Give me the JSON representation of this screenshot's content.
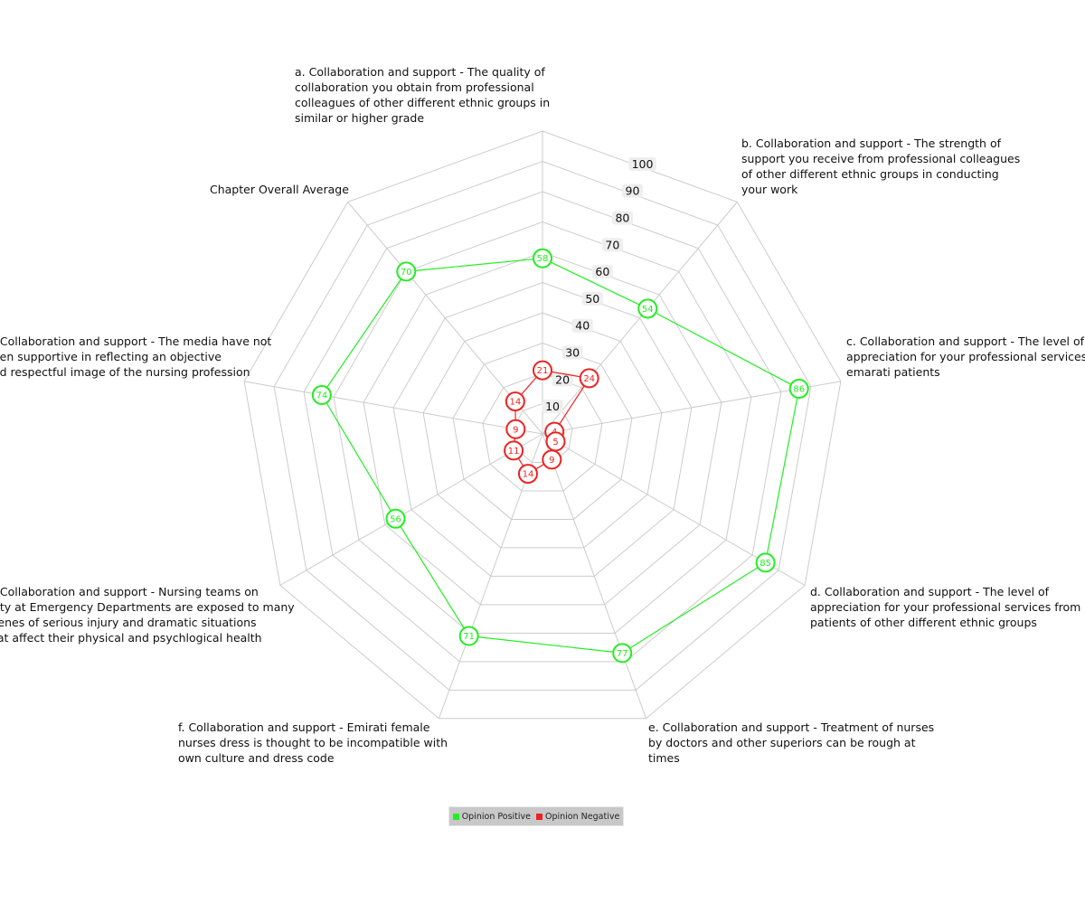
{
  "chart_data": {
    "type": "radar",
    "categories": [
      "a. Collaboration and support - The quality of collaboration you obtain from professional colleagues of other different ethnic groups in similar or higher grade",
      "b. Collaboration and support - The strength of support you receive from professional colleagues of other different ethnic groups in conducting your work",
      "c. Collaboration and support - The level of appreciation for your professional services from emarati patients",
      "d. Collaboration and support - The level of appreciation for your professional services from patients of other different ethnic groups",
      "e. Collaboration and support - Treatment of nurses by doctors and other superiors can be rough at times",
      "f. Collaboration and support - Emirati female nurses dress is thought to be incompatible with own culture and dress code",
      "g. Collaboration and support - Nursing teams on duty at Emergency Departments are exposed to many scenes of serious injury and dramatic situations that affect their physical and psychlogical health",
      "h. Collaboration and support - The media have not been supportive in reflecting an objective and respectful image of the nursing profession",
      "Chapter Overall Average"
    ],
    "label_lines": [
      [
        "a. Collaboration and support - The quality of",
        "collaboration you obtain from professional",
        "colleagues of other different ethnic groups in",
        "similar or higher grade"
      ],
      [
        "b. Collaboration and support - The strength of",
        "support you receive from professional colleagues",
        "of other different ethnic groups in conducting",
        "your work"
      ],
      [
        "c. Collaboration and support - The level of",
        "appreciation for your professional services from",
        "emarati patients"
      ],
      [
        "d. Collaboration and support - The level of",
        "appreciation for your professional services from",
        "patients of other different ethnic groups"
      ],
      [
        "e. Collaboration and support - Treatment of nurses",
        "by doctors and other superiors can be rough at",
        "times"
      ],
      [
        "f. Collaboration and support - Emirati female",
        "nurses dress is thought to be incompatible with",
        "own culture and dress code"
      ],
      [
        "g. Collaboration and support - Nursing teams on",
        "duty at Emergency Departments are exposed to many",
        "scenes of serious injury and dramatic situations",
        "that affect their physical and psychlogical health"
      ],
      [
        "h. Collaboration and support - The media have not",
        "been supportive in reflecting an objective",
        "and respectful image of the nursing profession"
      ],
      [
        "Chapter Overall Average"
      ]
    ],
    "series": [
      {
        "name": "Opinion Positive",
        "color": "#22ee22",
        "values": [
          58,
          54,
          86,
          85,
          77,
          71,
          56,
          74,
          70
        ]
      },
      {
        "name": "Opinion Negative",
        "color": "#ee2222",
        "values": [
          21,
          24,
          4,
          5,
          9,
          14,
          11,
          9,
          14
        ]
      }
    ],
    "r_ticks": [
      10,
      20,
      30,
      40,
      50,
      60,
      70,
      80,
      90,
      100
    ],
    "r_range": [
      0,
      100
    ],
    "grid_color": "#cccccc",
    "legend_placement": "bottom-center"
  }
}
